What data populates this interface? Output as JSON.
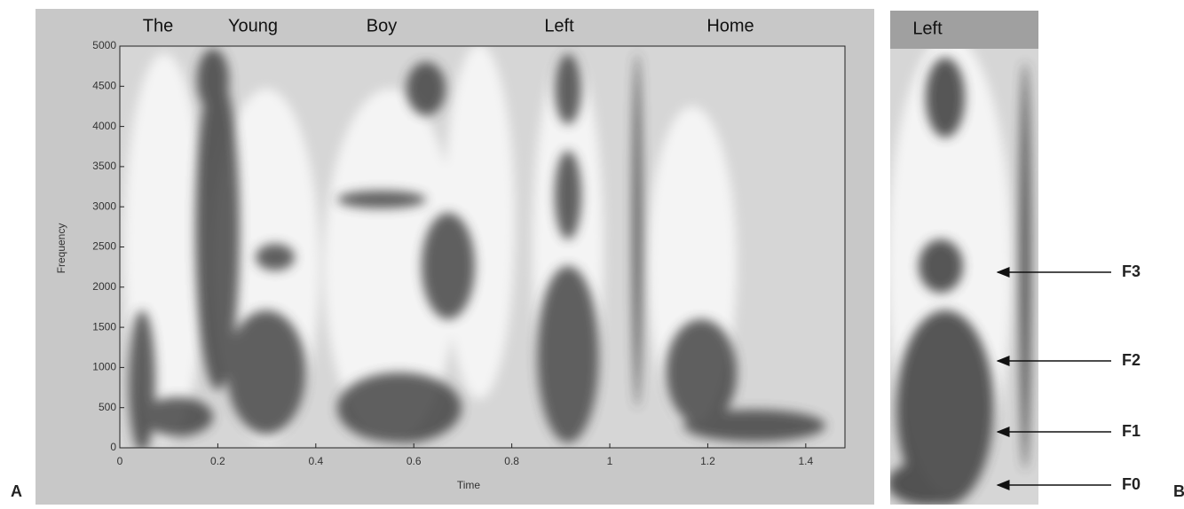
{
  "chart_data": [
    {
      "type": "spectrogram",
      "panel_label": "A",
      "words": [
        "The",
        "Young",
        "Boy",
        "Left",
        "Home"
      ],
      "xlabel": "Time",
      "ylabel": "Frequency",
      "xlim": [
        0,
        1.48
      ],
      "ylim": [
        0,
        5000
      ],
      "xticks": [
        0,
        0.2,
        0.4,
        0.6,
        0.8,
        1,
        1.2,
        1.4
      ],
      "yticks": [
        0,
        500,
        1000,
        1500,
        2000,
        2500,
        3000,
        3500,
        4000,
        4500,
        5000
      ]
    },
    {
      "type": "spectrogram",
      "panel_label": "B",
      "title": "Left",
      "annotations": [
        "F3",
        "F2",
        "F1",
        "F0"
      ]
    }
  ]
}
